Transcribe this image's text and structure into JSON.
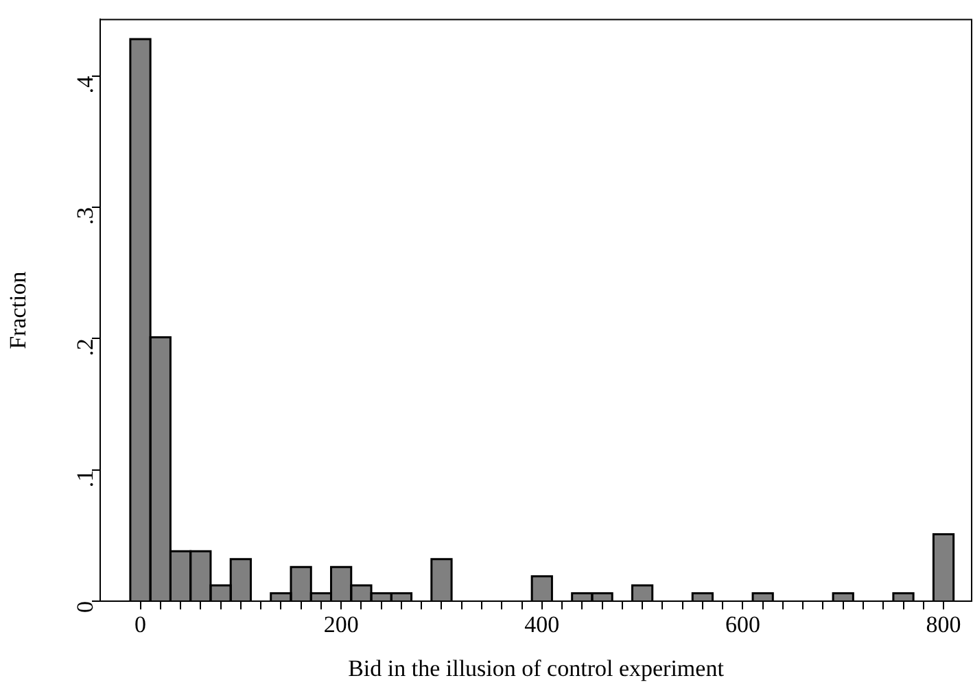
{
  "chart_data": {
    "type": "histogram",
    "xlabel": "Bid in the illusion of control experiment",
    "ylabel": "Fraction",
    "bins": [
      -10,
      10,
      30,
      50,
      70,
      90,
      110,
      130,
      150,
      170,
      190,
      210,
      230,
      250,
      270,
      290,
      310,
      330,
      350,
      370,
      390,
      410,
      430,
      450,
      470,
      490,
      510,
      530,
      550,
      570,
      590,
      610,
      630,
      650,
      670,
      690,
      710,
      730,
      750,
      770,
      790,
      810
    ],
    "values": [
      0.428,
      0.201,
      0.038,
      0.038,
      0.012,
      0.032,
      0,
      0.006,
      0.026,
      0.006,
      0.026,
      0.012,
      0.006,
      0.006,
      0,
      0.032,
      0,
      0,
      0,
      0,
      0.019,
      0,
      0.006,
      0.006,
      0,
      0.012,
      0,
      0,
      0.006,
      0,
      0,
      0.006,
      0,
      0,
      0,
      0.006,
      0,
      0,
      0.006,
      0,
      0.051
    ],
    "color": "#808080",
    "xlim": [
      -40,
      828
    ],
    "xticks": [
      0,
      {
        "value": 20,
        "label": null
      },
      {
        "value": 40,
        "label": null
      },
      {
        "value": 60,
        "label": null
      },
      {
        "value": 80,
        "label": null
      },
      {
        "value": 100,
        "label": null
      },
      {
        "value": 120,
        "label": null
      },
      {
        "value": 140,
        "label": null
      },
      {
        "value": 160,
        "label": null
      },
      {
        "value": 180,
        "label": null
      },
      200,
      {
        "value": 220,
        "label": null
      },
      {
        "value": 240,
        "label": null
      },
      {
        "value": 260,
        "label": null
      },
      {
        "value": 280,
        "label": null
      },
      {
        "value": 300,
        "label": null
      },
      {
        "value": 320,
        "label": null
      },
      {
        "value": 340,
        "label": null
      },
      {
        "value": 360,
        "label": null
      },
      {
        "value": 380,
        "label": null
      },
      400,
      {
        "value": 420,
        "label": null
      },
      {
        "value": 440,
        "label": null
      },
      {
        "value": 460,
        "label": null
      },
      {
        "value": 480,
        "label": null
      },
      {
        "value": 500,
        "label": null
      },
      {
        "value": 520,
        "label": null
      },
      {
        "value": 540,
        "label": null
      },
      {
        "value": 560,
        "label": null
      },
      {
        "value": 580,
        "label": null
      },
      600,
      {
        "value": 620,
        "label": null
      },
      {
        "value": 640,
        "label": null
      },
      {
        "value": 660,
        "label": null
      },
      {
        "value": 680,
        "label": null
      },
      {
        "value": 700,
        "label": null
      },
      {
        "value": 720,
        "label": null
      },
      {
        "value": 740,
        "label": null
      },
      {
        "value": 760,
        "label": null
      },
      {
        "value": 780,
        "label": null
      },
      800
    ],
    "ylim": [
      0,
      0.443
    ],
    "yticks": [
      0,
      {
        "value": 0.1,
        "label": ".1"
      },
      {
        "value": 0.2,
        "label": ".2"
      },
      {
        "value": 0.3,
        "label": ".3"
      },
      {
        "value": 0.4,
        "label": ".4"
      }
    ],
    "grid": false,
    "legend": false
  }
}
